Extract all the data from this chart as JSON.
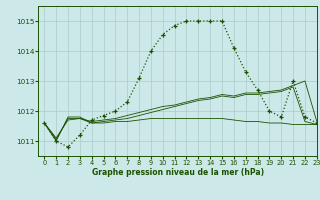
{
  "title": "Graphe pression niveau de la mer (hPa)",
  "background_color": "#cce8e8",
  "grid_color": "#aacccc",
  "line_color": "#1a5200",
  "xlim": [
    -0.5,
    23
  ],
  "ylim": [
    1010.5,
    1015.5
  ],
  "yticks": [
    1011,
    1012,
    1013,
    1014,
    1015
  ],
  "xticks": [
    0,
    1,
    2,
    3,
    4,
    5,
    6,
    7,
    8,
    9,
    10,
    11,
    12,
    13,
    14,
    15,
    16,
    17,
    18,
    19,
    20,
    21,
    22,
    23
  ],
  "main_x": [
    0,
    1,
    2,
    3,
    4,
    5,
    6,
    7,
    8,
    9,
    10,
    11,
    12,
    13,
    14,
    15,
    16,
    17,
    18,
    19,
    20,
    21,
    22,
    23
  ],
  "main_y": [
    1011.6,
    1011.0,
    1010.8,
    1011.2,
    1011.7,
    1011.85,
    1012.0,
    1012.3,
    1013.1,
    1014.0,
    1014.55,
    1014.85,
    1015.0,
    1015.0,
    1015.0,
    1015.0,
    1014.1,
    1013.3,
    1012.7,
    1012.0,
    1011.8,
    1013.0,
    1011.8,
    1011.6
  ],
  "line2_x": [
    0,
    1,
    2,
    3,
    4,
    5,
    6,
    7,
    8,
    9,
    10,
    11,
    12,
    13,
    14,
    15,
    16,
    17,
    18,
    19,
    20,
    21,
    22,
    23
  ],
  "line2_y": [
    1011.6,
    1011.0,
    1011.8,
    1011.8,
    1011.6,
    1011.6,
    1011.65,
    1011.65,
    1011.7,
    1011.75,
    1011.75,
    1011.75,
    1011.75,
    1011.75,
    1011.75,
    1011.75,
    1011.7,
    1011.65,
    1011.65,
    1011.6,
    1011.6,
    1011.55,
    1011.55,
    1011.55
  ],
  "line3_x": [
    0,
    1,
    2,
    3,
    4,
    5,
    6,
    7,
    8,
    9,
    10,
    11,
    12,
    13,
    14,
    15,
    16,
    17,
    18,
    19,
    20,
    21,
    22,
    23
  ],
  "line3_y": [
    1011.6,
    1011.1,
    1011.7,
    1011.75,
    1011.65,
    1011.7,
    1011.75,
    1011.85,
    1011.95,
    1012.05,
    1012.15,
    1012.2,
    1012.3,
    1012.4,
    1012.45,
    1012.55,
    1012.5,
    1012.6,
    1012.6,
    1012.65,
    1012.7,
    1012.85,
    1013.0,
    1011.65
  ],
  "line4_x": [
    0,
    1,
    2,
    3,
    4,
    5,
    6,
    7,
    8,
    9,
    10,
    11,
    12,
    13,
    14,
    15,
    16,
    17,
    18,
    19,
    20,
    21,
    22,
    23
  ],
  "line4_y": [
    1011.6,
    1011.05,
    1011.75,
    1011.75,
    1011.6,
    1011.65,
    1011.7,
    1011.75,
    1011.85,
    1011.95,
    1012.05,
    1012.15,
    1012.25,
    1012.35,
    1012.4,
    1012.5,
    1012.45,
    1012.55,
    1012.55,
    1012.6,
    1012.65,
    1012.8,
    1011.65,
    1011.55
  ]
}
